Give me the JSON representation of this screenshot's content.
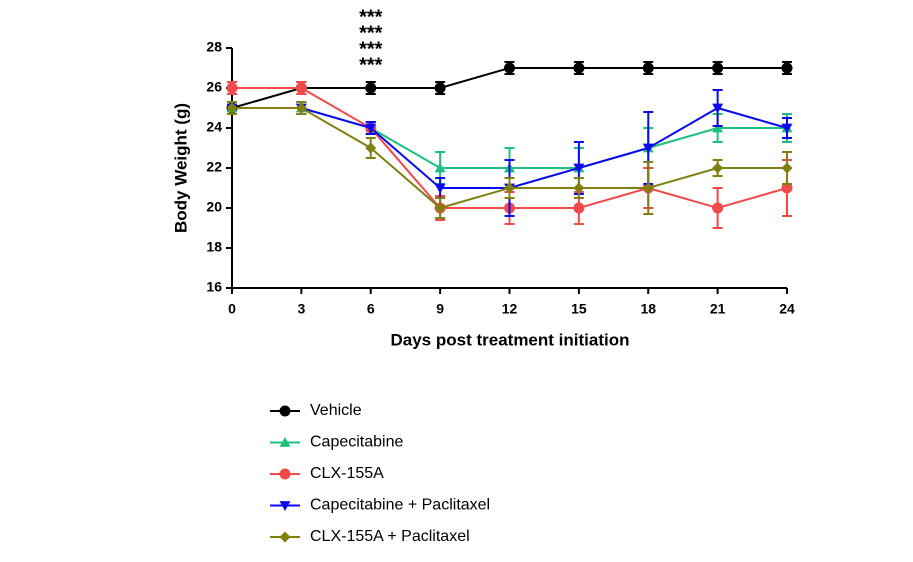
{
  "chart_data": {
    "type": "line",
    "x_label": "Days post treatment initiation",
    "y_label": "Body  Weight (g)",
    "x": [
      0,
      3,
      6,
      9,
      12,
      15,
      18,
      21,
      24
    ],
    "xlim": [
      0,
      24
    ],
    "xticks": [
      0,
      3,
      6,
      9,
      12,
      15,
      18,
      21,
      24
    ],
    "ylim": [
      16,
      28
    ],
    "yticks": [
      16,
      18,
      20,
      22,
      24,
      26,
      28
    ],
    "series": [
      {
        "name": "Vehicle",
        "color": "#000000",
        "marker": "circle",
        "values": [
          25,
          26,
          26,
          26,
          27,
          27,
          27,
          27,
          27
        ],
        "errors": [
          0.3,
          0.3,
          0.3,
          0.3,
          0.3,
          0.3,
          0.3,
          0.3,
          0.3
        ]
      },
      {
        "name": "Capecitabine",
        "color": "#1ec07e",
        "marker": "triangle-up",
        "values": [
          25,
          25,
          24,
          22,
          22,
          22,
          23,
          24,
          24
        ],
        "errors": [
          0.3,
          0.3,
          0.3,
          0.8,
          1.0,
          1.0,
          1.0,
          0.7,
          0.7
        ]
      },
      {
        "name": "CLX-155A",
        "color": "#f24a4a",
        "marker": "circle",
        "values": [
          26,
          26,
          24,
          20,
          20,
          20,
          21,
          20,
          21
        ],
        "errors": [
          0.3,
          0.3,
          0.3,
          0.6,
          0.8,
          0.8,
          1.0,
          1.0,
          1.4
        ]
      },
      {
        "name": "Capecitabine + Paclitaxel",
        "color": "#0a0af0",
        "marker": "triangle-down",
        "values": [
          25,
          25,
          24,
          21,
          21,
          22,
          23,
          25,
          24
        ],
        "errors": [
          0.3,
          0.3,
          0.3,
          0.5,
          1.4,
          1.3,
          1.8,
          0.9,
          0.5
        ]
      },
      {
        "name": "CLX-155A + Paclitaxel",
        "color": "#808010",
        "marker": "diamond",
        "values": [
          25,
          25,
          23,
          20,
          21,
          21,
          21,
          22,
          22
        ],
        "errors": [
          0.3,
          0.3,
          0.5,
          0.5,
          0.5,
          0.5,
          1.3,
          0.4,
          0.8
        ]
      }
    ],
    "annotations": [
      {
        "text": "***",
        "color": "#1ec01e",
        "x": 6
      },
      {
        "text": "***",
        "color": "#f08c1e",
        "x": 6
      },
      {
        "text": "***",
        "color": "#0a0af0",
        "x": 6
      },
      {
        "text": "***",
        "color": "#808040",
        "x": 6
      }
    ]
  }
}
